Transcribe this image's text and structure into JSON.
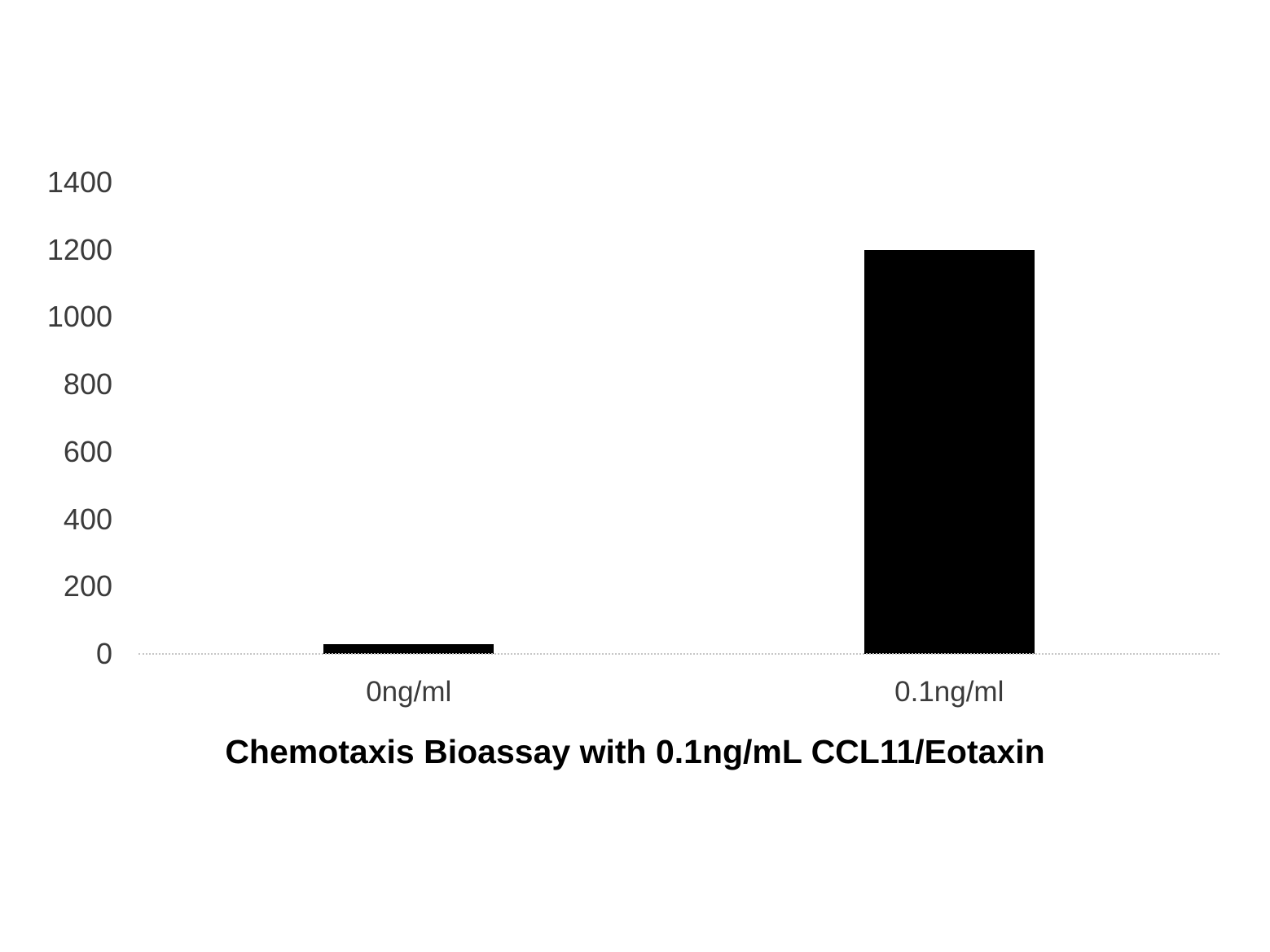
{
  "chart_data": {
    "type": "bar",
    "title": "Chemotaxis Bioassay with 0.1ng/mL CCL11/Eotaxin",
    "categories": [
      "0ng/ml",
      "0.1ng/ml"
    ],
    "values": [
      30,
      1200
    ],
    "xlabel": "",
    "ylabel": "",
    "ylim": [
      0,
      1400
    ],
    "yticks": [
      0,
      200,
      400,
      600,
      800,
      1000,
      1200,
      1400
    ],
    "grid": false,
    "legend": false,
    "bar_color": "#000000",
    "axis_text_color": "#3b3b3b",
    "baseline_color": "#c6c6c6",
    "background_color": "#ffffff"
  }
}
